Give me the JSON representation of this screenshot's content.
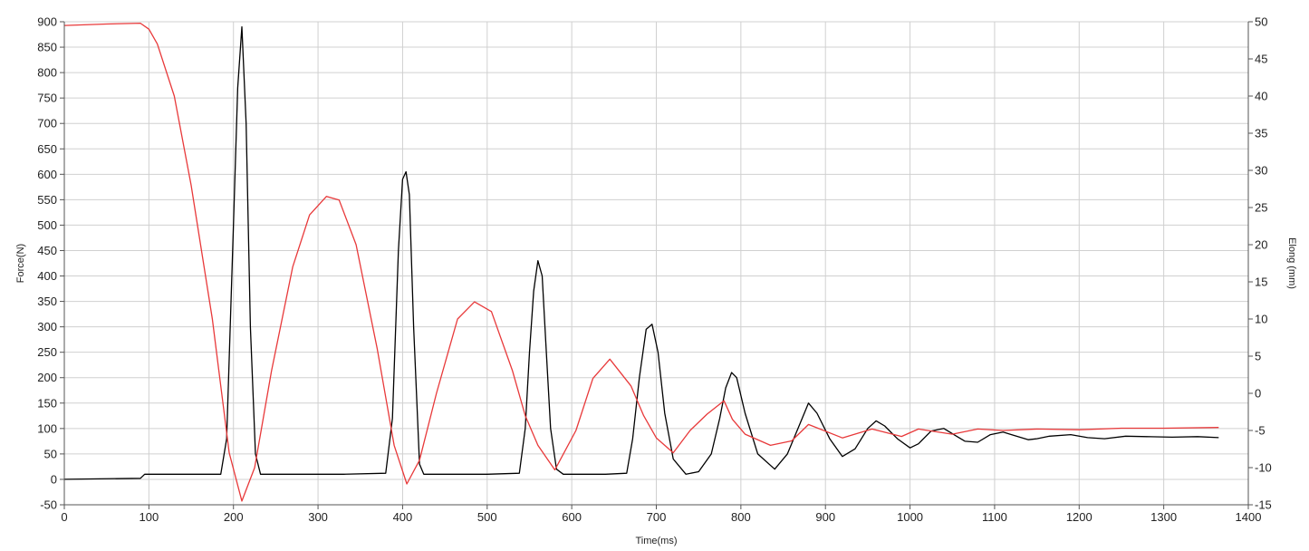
{
  "chart_data": {
    "type": "line",
    "title": "",
    "xlabel": "Time(ms)",
    "ylabel": "Force(N)",
    "y2label": "Elong (mm)",
    "xlim": [
      0,
      1400
    ],
    "ylim": [
      -50,
      900
    ],
    "y2lim": [
      -15,
      50
    ],
    "x_ticks": [
      0,
      100,
      200,
      300,
      400,
      500,
      600,
      700,
      800,
      900,
      1000,
      1100,
      1200,
      1300,
      1400
    ],
    "y_ticks": [
      -50,
      0,
      50,
      100,
      150,
      200,
      250,
      300,
      350,
      400,
      450,
      500,
      550,
      600,
      650,
      700,
      750,
      800,
      850,
      900
    ],
    "y2_ticks": [
      -15,
      -10,
      -5,
      0,
      5,
      10,
      15,
      20,
      25,
      30,
      35,
      40,
      45,
      50
    ],
    "grid": true,
    "legend": "none",
    "series": [
      {
        "axis": "left",
        "color": "#000000",
        "x": [
          0,
          90,
          95,
          185,
          192,
          200,
          205,
          210,
          215,
          220,
          226,
          232,
          330,
          380,
          388,
          395,
          400,
          404,
          408,
          413,
          420,
          425,
          430,
          500,
          538,
          545,
          550,
          555,
          560,
          565,
          570,
          575,
          582,
          590,
          640,
          665,
          672,
          680,
          688,
          695,
          702,
          710,
          720,
          735,
          750,
          765,
          775,
          782,
          789,
          795,
          805,
          820,
          840,
          855,
          870,
          880,
          890,
          905,
          920,
          935,
          950,
          960,
          970,
          985,
          1000,
          1010,
          1025,
          1040,
          1055,
          1065,
          1080,
          1095,
          1110,
          1120,
          1140,
          1150,
          1165,
          1190,
          1210,
          1230,
          1255,
          1280,
          1310,
          1340,
          1365
        ],
        "y": [
          0,
          2,
          10,
          10,
          80,
          500,
          770,
          890,
          700,
          300,
          50,
          10,
          10,
          12,
          120,
          450,
          590,
          605,
          560,
          300,
          30,
          10,
          10,
          10,
          12,
          100,
          250,
          370,
          430,
          400,
          250,
          100,
          20,
          10,
          10,
          12,
          80,
          200,
          295,
          305,
          250,
          130,
          40,
          10,
          15,
          50,
          120,
          180,
          210,
          200,
          130,
          50,
          20,
          50,
          110,
          150,
          130,
          80,
          45,
          60,
          100,
          115,
          105,
          80,
          62,
          70,
          95,
          100,
          85,
          75,
          73,
          88,
          93,
          88,
          78,
          80,
          85,
          88,
          82,
          80,
          85,
          84,
          83,
          84,
          82
        ]
      },
      {
        "axis": "right",
        "color": "#e8393a",
        "x": [
          0,
          50,
          90,
          100,
          110,
          130,
          150,
          175,
          195,
          210,
          225,
          245,
          270,
          290,
          310,
          325,
          345,
          370,
          390,
          405,
          420,
          440,
          465,
          485,
          505,
          530,
          545,
          560,
          580,
          605,
          625,
          645,
          670,
          685,
          700,
          720,
          740,
          760,
          780,
          790,
          805,
          835,
          860,
          880,
          920,
          955,
          990,
          1010,
          1050,
          1080,
          1110,
          1150,
          1200,
          1250,
          1300,
          1365
        ],
        "y": [
          49.5,
          49.7,
          49.8,
          49,
          47,
          40,
          28,
          10,
          -8,
          -14.5,
          -10,
          3,
          17,
          24,
          26.5,
          26,
          20,
          6,
          -7,
          -12.2,
          -9,
          0,
          10,
          12.3,
          11,
          3,
          -3,
          -7,
          -10.3,
          -5,
          2,
          4.6,
          1,
          -3,
          -6,
          -8,
          -5,
          -2.8,
          -1,
          -3.5,
          -5.5,
          -7,
          -6.4,
          -4.2,
          -6,
          -4.8,
          -5.8,
          -4.8,
          -5.5,
          -4.8,
          -5,
          -4.8,
          -4.9,
          -4.7,
          -4.7,
          -4.6
        ]
      }
    ]
  }
}
